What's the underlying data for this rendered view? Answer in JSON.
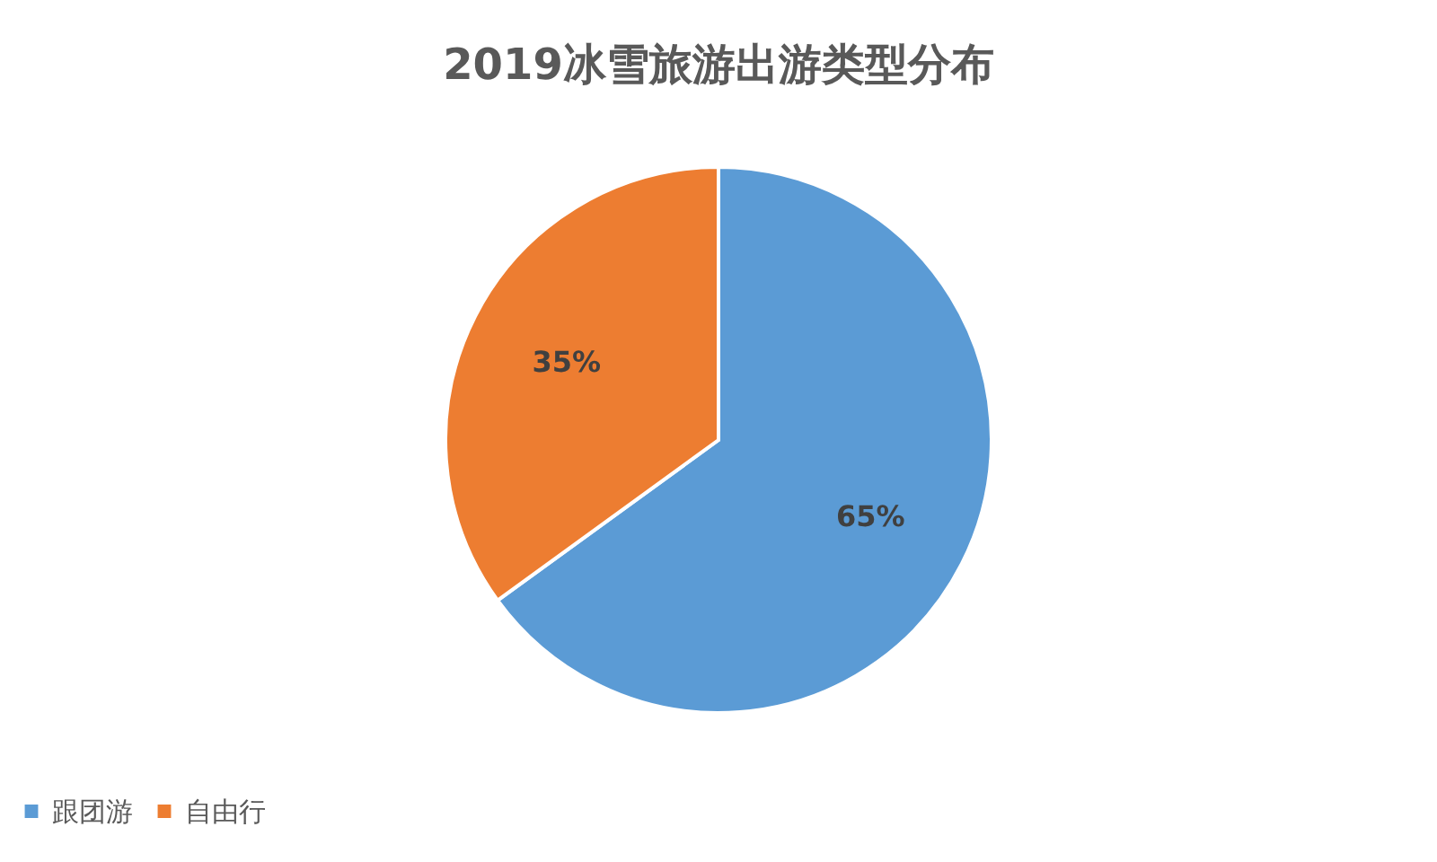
{
  "chart_data": {
    "type": "pie",
    "title": "2019冰雪旅游出游类型分布",
    "categories": [
      "跟团游",
      "自由行"
    ],
    "values": [
      65,
      35
    ],
    "colors": [
      "#5b9bd5",
      "#ed7d31"
    ],
    "value_labels": [
      "65%",
      "35%"
    ],
    "legend": "bottom"
  }
}
